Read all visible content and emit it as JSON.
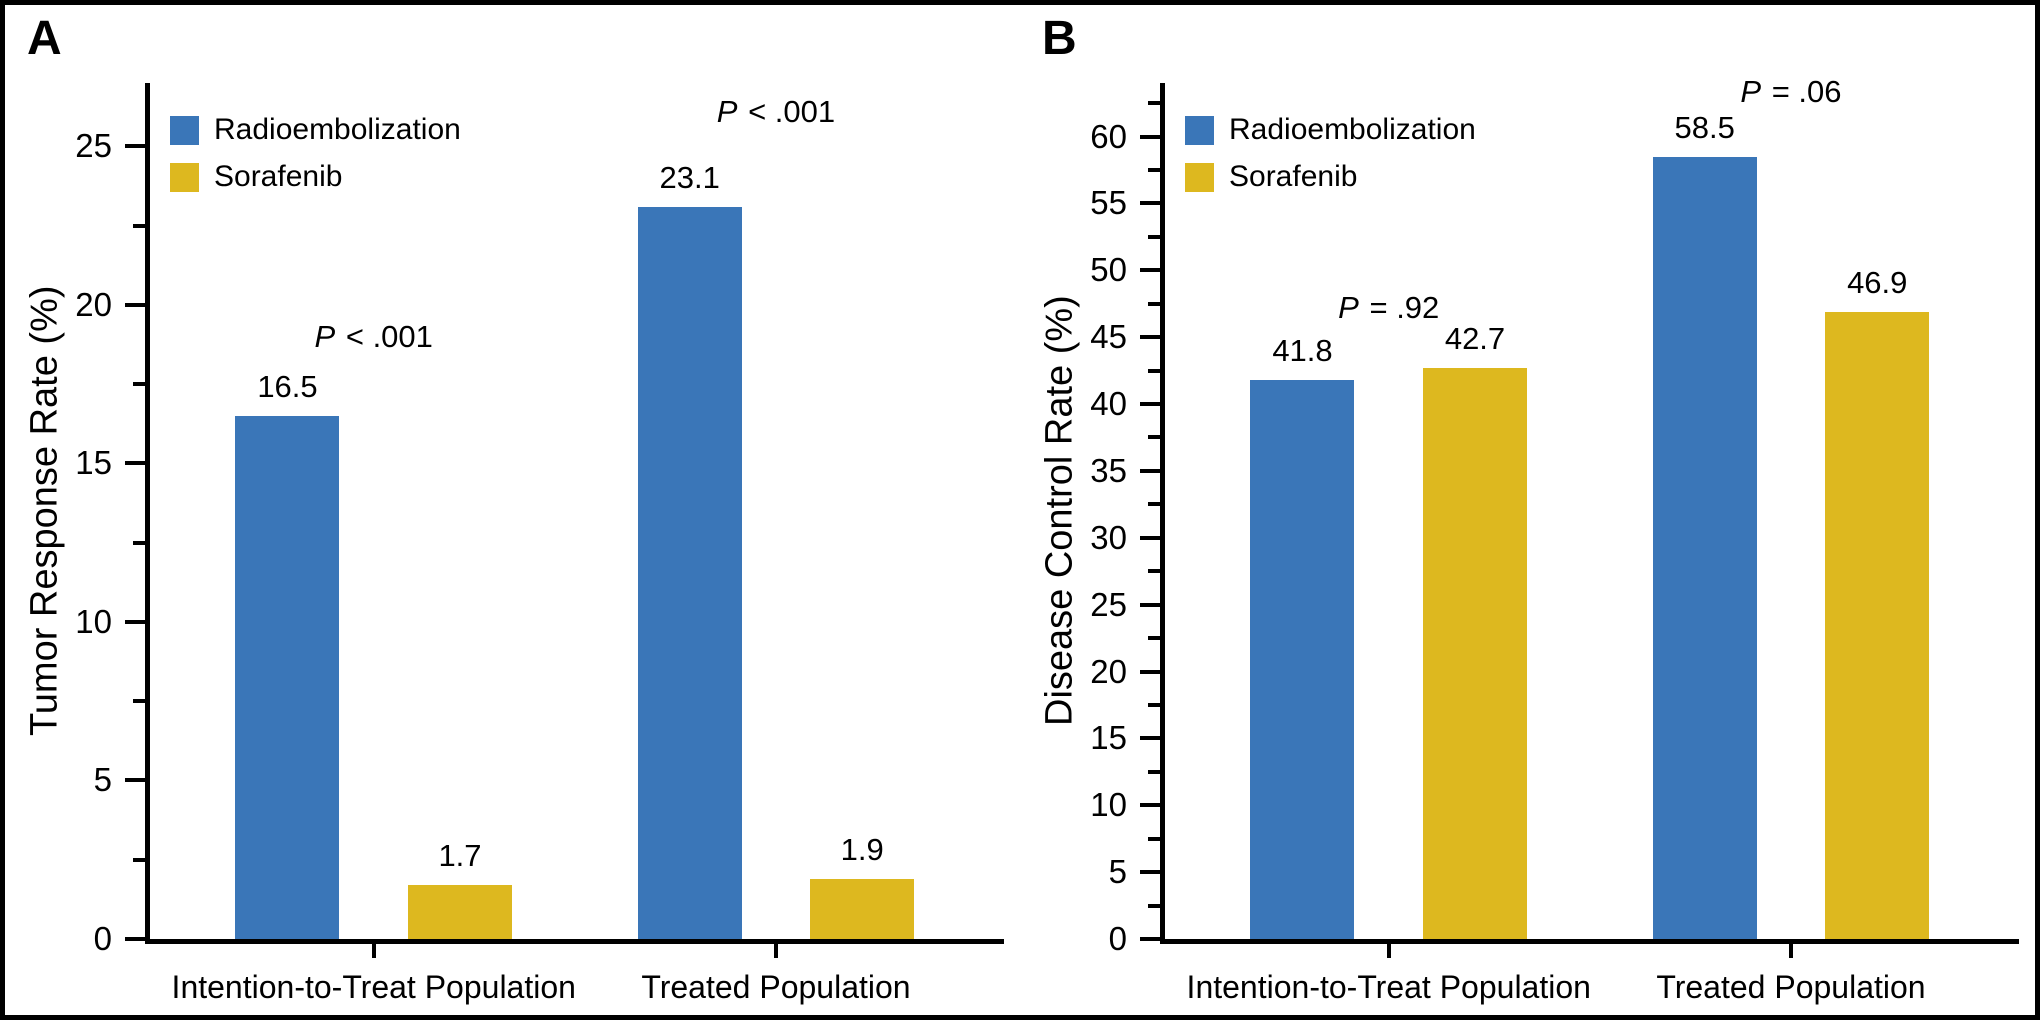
{
  "colors": {
    "radioembolization": "#3A76B8",
    "sorafenib": "#DDB81F",
    "axis": "#000000",
    "text": "#000000",
    "background": "#FFFFFF",
    "figure_border": "#000000"
  },
  "legend": {
    "items": [
      {
        "label": "Radioembolization",
        "color": "#3A76B8"
      },
      {
        "label": "Sorafenib",
        "color": "#DDB81F"
      }
    ],
    "position": "top-left"
  },
  "chart_data": [
    {
      "type": "bar",
      "panel_label": "A",
      "ylabel": "Tumor Response Rate (%)",
      "xlabel": "",
      "categories": [
        "Intention-to-Treat Population",
        "Treated Population"
      ],
      "series": [
        {
          "name": "Radioembolization",
          "color": "#3A76B8",
          "values": [
            16.5,
            23.1
          ]
        },
        {
          "name": "Sorafenib",
          "color": "#DDB81F",
          "values": [
            1.7,
            1.9
          ]
        }
      ],
      "value_labels": [
        [
          "16.5",
          "23.1"
        ],
        [
          "1.7",
          "1.9"
        ]
      ],
      "annotations": [
        {
          "text": "P < .001",
          "group": 0,
          "y": 19.0
        },
        {
          "text": "P < .001",
          "group": 1,
          "y": 26.1
        }
      ],
      "y_axis": {
        "min": 0,
        "max": 27,
        "major_step": 5,
        "minor_step": 2.5,
        "max_labeled_tick": 25
      },
      "grid": false,
      "legend_position": "top-left"
    },
    {
      "type": "bar",
      "panel_label": "B",
      "ylabel": "Disease Control Rate (%)",
      "xlabel": "",
      "categories": [
        "Intention-to-Treat Population",
        "Treated Population"
      ],
      "series": [
        {
          "name": "Radioembolization",
          "color": "#3A76B8",
          "values": [
            41.8,
            58.5
          ]
        },
        {
          "name": "Sorafenib",
          "color": "#DDB81F",
          "values": [
            42.7,
            46.9
          ]
        }
      ],
      "value_labels": [
        [
          "41.8",
          "58.5"
        ],
        [
          "42.7",
          "46.9"
        ]
      ],
      "annotations": [
        {
          "text": "P = .92",
          "group": 0,
          "y": 47.2
        },
        {
          "text": "P = .06",
          "group": 1,
          "y": 63.3
        }
      ],
      "y_axis": {
        "min": 0,
        "max": 64,
        "major_step": 5,
        "minor_step": 2.5,
        "max_labeled_tick": 60
      },
      "grid": false,
      "legend_position": "top-left"
    }
  ]
}
